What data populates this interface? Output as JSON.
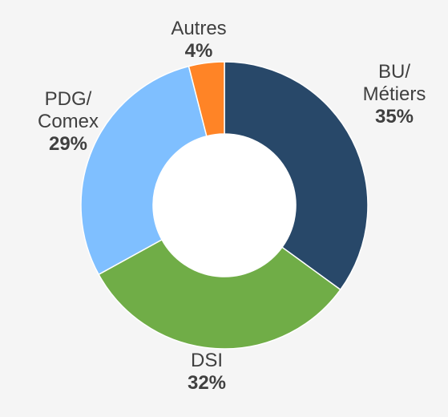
{
  "chart_data": {
    "type": "pie",
    "variant": "donut",
    "slices": [
      {
        "name": "BU/\nMétiers",
        "value": 35,
        "label": "35%",
        "color": "#284869"
      },
      {
        "name": "DSI",
        "value": 32,
        "label": "32%",
        "color": "#70ad47"
      },
      {
        "name": "PDG/\nComex",
        "value": 29,
        "label": "29%",
        "color": "#7fbfff"
      },
      {
        "name": "Autres",
        "value": 4,
        "label": "4%",
        "color": "#ff8426"
      }
    ],
    "start_angle_deg": 0,
    "direction": "clockwise",
    "legend": "none"
  }
}
